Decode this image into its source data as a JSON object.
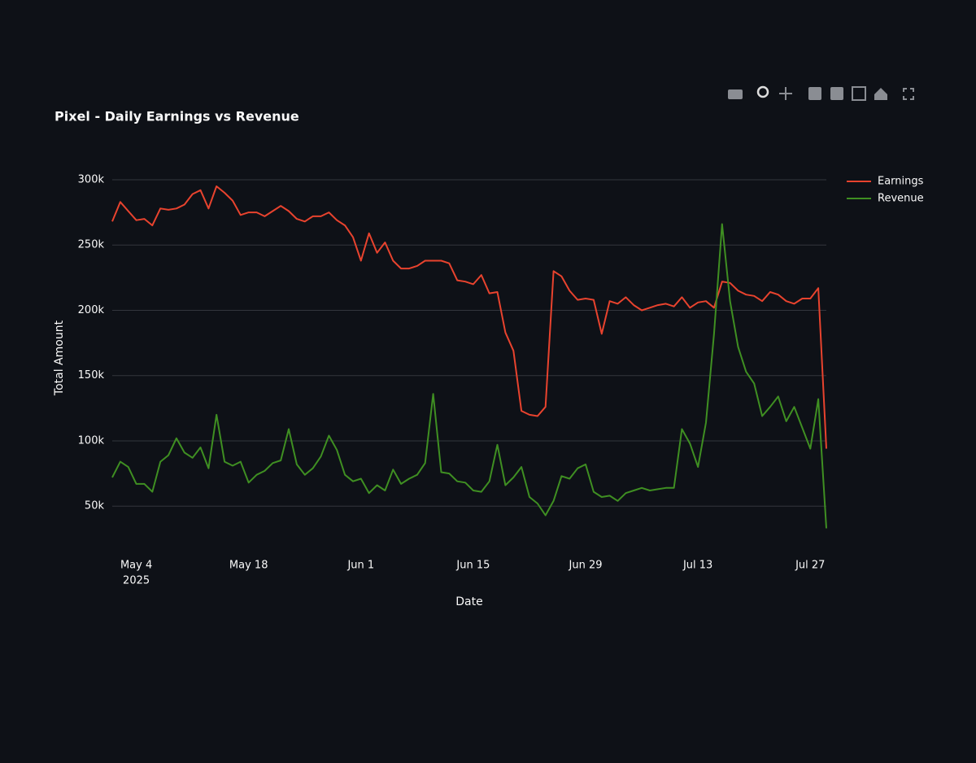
{
  "chart_data": {
    "type": "line",
    "title": "Pixel - Daily Earnings vs Revenue",
    "x_label": "Date",
    "y_label": "Total Amount",
    "x": [
      "2025-05-01",
      "2025-05-02",
      "2025-05-03",
      "2025-05-04",
      "2025-05-05",
      "2025-05-06",
      "2025-05-07",
      "2025-05-08",
      "2025-05-09",
      "2025-05-10",
      "2025-05-11",
      "2025-05-12",
      "2025-05-13",
      "2025-05-14",
      "2025-05-15",
      "2025-05-16",
      "2025-05-17",
      "2025-05-18",
      "2025-05-19",
      "2025-05-20",
      "2025-05-21",
      "2025-05-22",
      "2025-05-23",
      "2025-05-24",
      "2025-05-25",
      "2025-05-26",
      "2025-05-27",
      "2025-05-28",
      "2025-05-29",
      "2025-05-30",
      "2025-05-31",
      "2025-06-01",
      "2025-06-02",
      "2025-06-03",
      "2025-06-04",
      "2025-06-05",
      "2025-06-06",
      "2025-06-07",
      "2025-06-08",
      "2025-06-09",
      "2025-06-10",
      "2025-06-11",
      "2025-06-12",
      "2025-06-13",
      "2025-06-14",
      "2025-06-15",
      "2025-06-16",
      "2025-06-17",
      "2025-06-18",
      "2025-06-19",
      "2025-06-20",
      "2025-06-21",
      "2025-06-22",
      "2025-06-23",
      "2025-06-24",
      "2025-06-25",
      "2025-06-26",
      "2025-06-27",
      "2025-06-28",
      "2025-06-29",
      "2025-06-30",
      "2025-07-01",
      "2025-07-02",
      "2025-07-03",
      "2025-07-04",
      "2025-07-05",
      "2025-07-06",
      "2025-07-07",
      "2025-07-08",
      "2025-07-09",
      "2025-07-10",
      "2025-07-11",
      "2025-07-12",
      "2025-07-13",
      "2025-07-14",
      "2025-07-15",
      "2025-07-16",
      "2025-07-17",
      "2025-07-18",
      "2025-07-19",
      "2025-07-20",
      "2025-07-21",
      "2025-07-22",
      "2025-07-23",
      "2025-07-24",
      "2025-07-25",
      "2025-07-26",
      "2025-07-27",
      "2025-07-28",
      "2025-07-29"
    ],
    "series": [
      {
        "name": "Earnings",
        "color": "#e8432e",
        "values": [
          268000,
          283000,
          276000,
          269000,
          270000,
          265000,
          278000,
          277000,
          278000,
          281000,
          289000,
          292000,
          278000,
          295000,
          290000,
          284000,
          273000,
          275000,
          275000,
          272000,
          276000,
          280000,
          276000,
          270000,
          268000,
          272000,
          272000,
          275000,
          269000,
          265000,
          256000,
          238000,
          259000,
          244000,
          252000,
          238000,
          232000,
          232000,
          234000,
          238000,
          238000,
          238000,
          236000,
          223000,
          222000,
          220000,
          227000,
          213000,
          214000,
          183000,
          169000,
          123000,
          120000,
          119000,
          126000,
          230000,
          226000,
          215000,
          208000,
          209000,
          208000,
          182000,
          207000,
          205000,
          210000,
          204000,
          200000,
          202000,
          204000,
          205000,
          203000,
          210000,
          202000,
          206000,
          207000,
          202000,
          222000,
          221000,
          215000,
          212000,
          211000,
          207000,
          214000,
          212000,
          207000,
          205000,
          209000,
          209000,
          217000,
          94000
        ]
      },
      {
        "name": "Revenue",
        "color": "#3f8f22",
        "values": [
          72000,
          84000,
          80000,
          67000,
          67000,
          61000,
          84000,
          89000,
          102000,
          91000,
          87000,
          95000,
          79000,
          120000,
          84000,
          81000,
          84000,
          68000,
          74000,
          77000,
          83000,
          85000,
          109000,
          82000,
          74000,
          79000,
          88000,
          104000,
          93000,
          74000,
          69000,
          71000,
          60000,
          66000,
          62000,
          78000,
          67000,
          71000,
          74000,
          83000,
          136000,
          76000,
          75000,
          69000,
          68000,
          62000,
          61000,
          69000,
          97000,
          66000,
          72000,
          80000,
          57000,
          52000,
          43000,
          54000,
          73000,
          71000,
          79000,
          82000,
          61000,
          57000,
          58000,
          54000,
          60000,
          62000,
          64000,
          62000,
          63000,
          64000,
          64000,
          109000,
          98000,
          80000,
          114000,
          182000,
          266000,
          207000,
          172000,
          153000,
          144000,
          119000,
          126000,
          134000,
          115000,
          126000,
          110000,
          94000,
          132000,
          33000
        ]
      }
    ],
    "xlim": [
      "2025-05-01",
      "2025-07-29"
    ],
    "xticks": [
      {
        "value": "2025-05-04",
        "label": "May 4",
        "sublabel": "2025"
      },
      {
        "value": "2025-05-18",
        "label": "May 18"
      },
      {
        "value": "2025-06-01",
        "label": "Jun 1"
      },
      {
        "value": "2025-06-15",
        "label": "Jun 15"
      },
      {
        "value": "2025-06-29",
        "label": "Jun 29"
      },
      {
        "value": "2025-07-13",
        "label": "Jul 13"
      },
      {
        "value": "2025-07-27",
        "label": "Jul 27"
      }
    ],
    "ylim": [
      14000,
      314000
    ],
    "yticks": [
      {
        "value": 50000,
        "label": "50k"
      },
      {
        "value": 100000,
        "label": "100k"
      },
      {
        "value": 150000,
        "label": "150k"
      },
      {
        "value": 200000,
        "label": "200k"
      },
      {
        "value": 250000,
        "label": "250k"
      },
      {
        "value": 300000,
        "label": "300k"
      }
    ],
    "grid": true,
    "legend": "top-right"
  }
}
